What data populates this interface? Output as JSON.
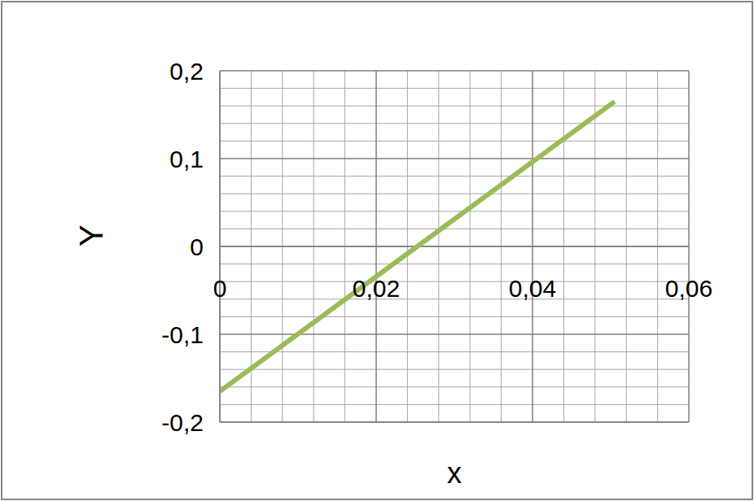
{
  "chart_data": {
    "type": "line",
    "x_label": "x",
    "y_label": "Y",
    "x": [
      0,
      0.0505
    ],
    "values": [
      -0.165,
      0.165
    ],
    "color": "#9bbb59",
    "xlim": [
      0,
      0.06
    ],
    "xticks": [
      0,
      {
        "value": 0.02,
        "label": "0,02"
      },
      {
        "value": 0.04,
        "label": "0,04"
      },
      {
        "value": 0.06,
        "label": "0,06"
      }
    ],
    "ylim": [
      -0.2,
      0.2
    ],
    "yticks": [
      {
        "value": -0.2,
        "label": "-0,2"
      },
      {
        "value": -0.1,
        "label": "-0,1"
      },
      0,
      {
        "value": 0.1,
        "label": "0,1"
      },
      {
        "value": 0.2,
        "label": "0,2"
      }
    ],
    "grid": true
  }
}
